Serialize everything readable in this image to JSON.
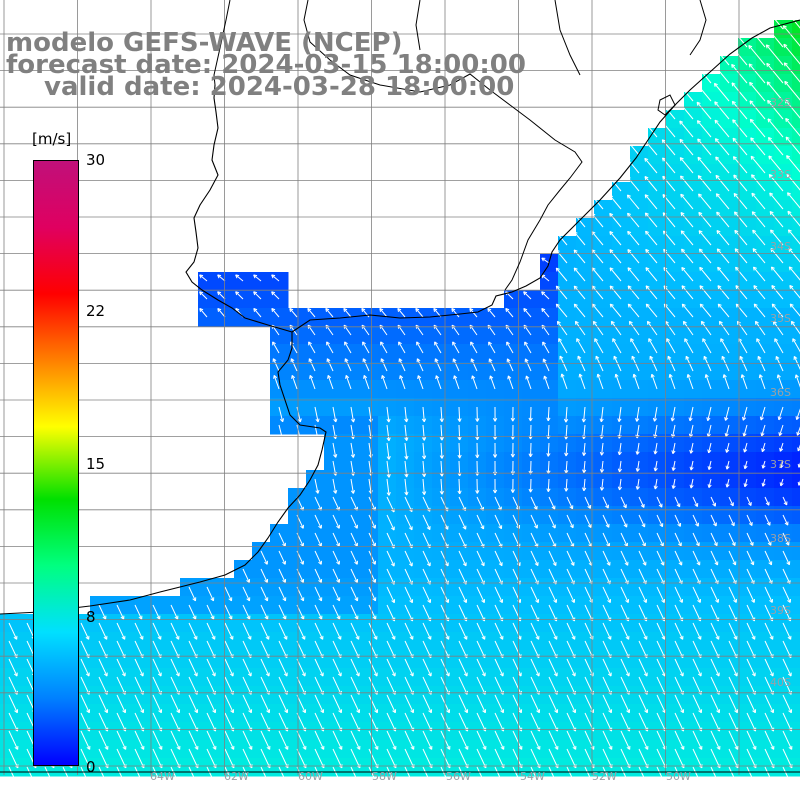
{
  "title": {
    "model": "modelo GEFS-WAVE (NCEP)",
    "forecast_date": "forecast date: 2024-03-15 18:00:00",
    "valid_date": "valid date: 2024-03-28 18:00:00"
  },
  "colorbar": {
    "unit": "[m/s]",
    "ticks": [
      "30",
      "22",
      "15",
      "8",
      "0"
    ],
    "tick_values": [
      30,
      22,
      15,
      8,
      0
    ],
    "range": [
      0,
      30
    ],
    "colors": [
      "#0000ff",
      "#0080ff",
      "#00e0ff",
      "#00ff80",
      "#00e000",
      "#ffff00",
      "#ff8000",
      "#ff0000",
      "#e00060",
      "#c0107a"
    ]
  },
  "map": {
    "lat_labels": [
      "32S",
      "33S",
      "34S",
      "35S",
      "36S",
      "37S",
      "38S",
      "39S",
      "40S"
    ],
    "lon_labels": [
      "64W",
      "62W",
      "60W",
      "58W",
      "56W",
      "54W",
      "52W",
      "50W"
    ],
    "land_color": "#ffffff",
    "coastline_color": "#000000",
    "grid_color": "#808080"
  }
}
